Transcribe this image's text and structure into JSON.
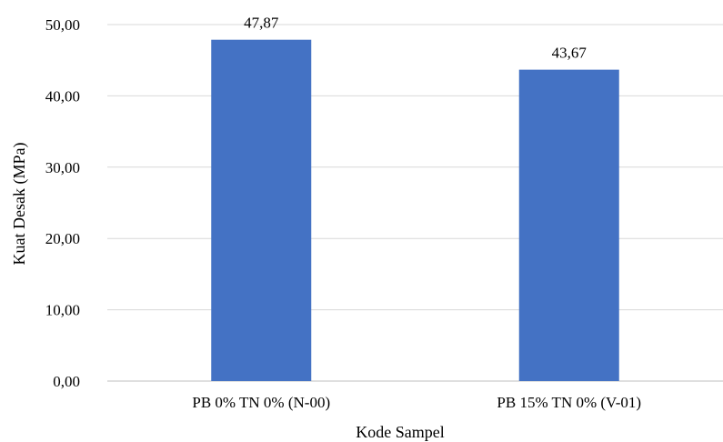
{
  "chart_data": {
    "type": "bar",
    "categories": [
      "PB 0% TN 0% (N-00)",
      "PB 15% TN 0% (V-01)"
    ],
    "values": [
      47.87,
      43.67
    ],
    "value_labels": [
      "47,87",
      "43,67"
    ],
    "xlabel": "Kode Sampel",
    "ylabel": "Kuat Desak (MPa)",
    "ylim": [
      0,
      50
    ],
    "yticks": [
      0,
      10,
      20,
      30,
      40,
      50
    ],
    "ytick_labels": [
      "0,00",
      "10,00",
      "20,00",
      "30,00",
      "40,00",
      "50,00"
    ],
    "grid": true,
    "legend": "none",
    "colors": {
      "bar": "#4472C4",
      "grid": "#D9D9D9",
      "axis": "#BFBFBF"
    }
  }
}
